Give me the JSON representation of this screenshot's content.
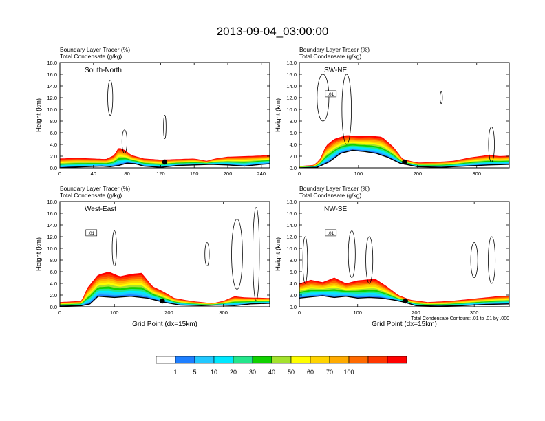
{
  "title": "2013-09-04_03:00:00",
  "chart_data": [
    {
      "type": "area",
      "id": "sn",
      "inset_label": "South-North",
      "subtitle_lines": [
        "Boundary Layer Tracer   (%)",
        "Total Condensate   (g/kg)"
      ],
      "ylabel": "Height (km)",
      "xlabel": "",
      "xlim": [
        0,
        250
      ],
      "ylim": [
        0,
        18
      ],
      "xticks": [
        0,
        40,
        80,
        120,
        160,
        200,
        240
      ],
      "yticks": [
        "0.0",
        "2.0",
        "4.0",
        "6.0",
        "8.0",
        "10.0",
        "12.0",
        "14.0",
        "16.0",
        "18.0"
      ],
      "terrain_km": [
        [
          0,
          0.0
        ],
        [
          10,
          0.1
        ],
        [
          30,
          0.2
        ],
        [
          50,
          0.3
        ],
        [
          60,
          0.2
        ],
        [
          70,
          0.4
        ],
        [
          80,
          0.8
        ],
        [
          90,
          0.7
        ],
        [
          100,
          0.3
        ],
        [
          120,
          0.1
        ],
        [
          140,
          0.4
        ],
        [
          160,
          0.5
        ],
        [
          180,
          0.6
        ],
        [
          200,
          0.5
        ],
        [
          220,
          0.3
        ],
        [
          240,
          0.6
        ],
        [
          250,
          0.7
        ]
      ],
      "tracer_top_km": [
        [
          0,
          1.6
        ],
        [
          20,
          1.7
        ],
        [
          40,
          1.6
        ],
        [
          55,
          1.5
        ],
        [
          65,
          2.2
        ],
        [
          70,
          3.5
        ],
        [
          78,
          3.0
        ],
        [
          85,
          2.2
        ],
        [
          100,
          1.6
        ],
        [
          120,
          1.4
        ],
        [
          140,
          1.5
        ],
        [
          160,
          1.6
        ],
        [
          175,
          1.2
        ],
        [
          185,
          1.6
        ],
        [
          200,
          1.9
        ],
        [
          220,
          2.0
        ],
        [
          240,
          2.1
        ],
        [
          250,
          2.2
        ]
      ],
      "contour_label": "",
      "marker": [
        125,
        1.0
      ]
    },
    {
      "type": "area",
      "id": "swne",
      "inset_label": "SW-NE",
      "subtitle_lines": [
        "Boundary Layer Tracer   (%)",
        "Total Condensate   (g/kg)"
      ],
      "ylabel": "Height (km)",
      "xlabel": "",
      "xlim": [
        0,
        355
      ],
      "ylim": [
        0,
        18
      ],
      "xticks": [
        0,
        100,
        200,
        300
      ],
      "yticks": [
        "0.0",
        "2.0",
        "4.0",
        "6.0",
        "8.0",
        "10.0",
        "12.0",
        "14.0",
        "16.0",
        "18.0"
      ],
      "terrain_km": [
        [
          0,
          0.0
        ],
        [
          30,
          0.1
        ],
        [
          50,
          1.0
        ],
        [
          70,
          2.5
        ],
        [
          90,
          3.0
        ],
        [
          110,
          2.8
        ],
        [
          130,
          2.5
        ],
        [
          150,
          1.8
        ],
        [
          170,
          0.8
        ],
        [
          200,
          0.2
        ],
        [
          240,
          0.1
        ],
        [
          280,
          0.3
        ],
        [
          320,
          0.5
        ],
        [
          355,
          0.6
        ]
      ],
      "tracer_top_km": [
        [
          0,
          0.3
        ],
        [
          25,
          0.5
        ],
        [
          35,
          1.5
        ],
        [
          45,
          3.8
        ],
        [
          60,
          5.0
        ],
        [
          80,
          5.6
        ],
        [
          100,
          5.4
        ],
        [
          120,
          5.5
        ],
        [
          140,
          5.3
        ],
        [
          160,
          3.5
        ],
        [
          175,
          1.5
        ],
        [
          200,
          0.9
        ],
        [
          230,
          1.0
        ],
        [
          260,
          1.2
        ],
        [
          290,
          1.8
        ],
        [
          320,
          2.2
        ],
        [
          340,
          2.0
        ],
        [
          355,
          2.1
        ]
      ],
      "contour_label": ".01",
      "marker": [
        178,
        1.0
      ]
    },
    {
      "type": "area",
      "id": "we",
      "inset_label": "West-East",
      "subtitle_lines": [
        "Boundary Layer Tracer   (%)",
        "Total Condensate   (g/kg)"
      ],
      "ylabel": "Height (km)",
      "xlabel": "Grid Point (dx=15km)",
      "xlim": [
        0,
        385
      ],
      "ylim": [
        0,
        18
      ],
      "xticks": [
        0,
        100,
        200,
        300
      ],
      "yticks": [
        "0.0",
        "2.0",
        "4.0",
        "6.0",
        "8.0",
        "10.0",
        "12.0",
        "14.0",
        "16.0",
        "18.0"
      ],
      "terrain_km": [
        [
          0,
          0.1
        ],
        [
          40,
          0.2
        ],
        [
          55,
          0.5
        ],
        [
          70,
          1.8
        ],
        [
          100,
          1.6
        ],
        [
          130,
          1.8
        ],
        [
          160,
          1.5
        ],
        [
          190,
          0.8
        ],
        [
          220,
          0.3
        ],
        [
          260,
          0.2
        ],
        [
          290,
          0.3
        ],
        [
          320,
          0.2
        ],
        [
          350,
          0.5
        ],
        [
          385,
          0.6
        ]
      ],
      "tracer_top_km": [
        [
          0,
          0.8
        ],
        [
          40,
          1.0
        ],
        [
          50,
          3.2
        ],
        [
          70,
          5.5
        ],
        [
          90,
          6.0
        ],
        [
          110,
          5.2
        ],
        [
          130,
          5.6
        ],
        [
          150,
          5.8
        ],
        [
          170,
          3.5
        ],
        [
          190,
          2.6
        ],
        [
          210,
          1.5
        ],
        [
          240,
          1.0
        ],
        [
          280,
          0.6
        ],
        [
          300,
          1.0
        ],
        [
          320,
          1.8
        ],
        [
          340,
          1.6
        ],
        [
          385,
          1.5
        ]
      ],
      "contour_label": ".01",
      "marker": [
        188,
        1.0
      ]
    },
    {
      "type": "area",
      "id": "nwse",
      "inset_label": "NW-SE",
      "subtitle_lines": [
        "Boundary Layer Tracer   (%)",
        "Total Condensate   (g/kg)"
      ],
      "ylabel": "Height (km)",
      "xlabel": "Grid Point (dx=15km)",
      "xlim": [
        0,
        360
      ],
      "ylim": [
        0,
        18
      ],
      "xticks": [
        0,
        100,
        200,
        300
      ],
      "yticks": [
        "0.0",
        "2.0",
        "4.0",
        "6.0",
        "8.0",
        "10.0",
        "12.0",
        "14.0",
        "16.0",
        "18.0"
      ],
      "terrain_km": [
        [
          0,
          1.5
        ],
        [
          20,
          1.7
        ],
        [
          40,
          1.9
        ],
        [
          60,
          1.6
        ],
        [
          80,
          1.8
        ],
        [
          100,
          1.5
        ],
        [
          120,
          1.6
        ],
        [
          140,
          1.5
        ],
        [
          160,
          1.2
        ],
        [
          180,
          0.8
        ],
        [
          200,
          0.2
        ],
        [
          240,
          0.1
        ],
        [
          280,
          0.2
        ],
        [
          320,
          0.4
        ],
        [
          360,
          0.5
        ]
      ],
      "tracer_top_km": [
        [
          0,
          4.0
        ],
        [
          20,
          4.6
        ],
        [
          40,
          4.2
        ],
        [
          60,
          5.0
        ],
        [
          80,
          4.0
        ],
        [
          100,
          4.5
        ],
        [
          130,
          4.8
        ],
        [
          150,
          3.5
        ],
        [
          170,
          2.0
        ],
        [
          190,
          1.2
        ],
        [
          220,
          0.8
        ],
        [
          260,
          1.0
        ],
        [
          300,
          1.4
        ],
        [
          340,
          1.8
        ],
        [
          360,
          1.9
        ]
      ],
      "contour_label": ".01",
      "marker": [
        182,
        1.0
      ],
      "footnote": "Total Condensate Contours: .01 to .01 by .000"
    }
  ],
  "colorbar": {
    "colors": [
      "#ffffff",
      "#1e7fff",
      "#22c8ff",
      "#00e8ff",
      "#25e68c",
      "#11d100",
      "#a4e22e",
      "#ffff00",
      "#ffd400",
      "#ffab00",
      "#ff6a00",
      "#ff3600",
      "#ff0000"
    ],
    "labels": [
      "1",
      "5",
      "10",
      "20",
      "30",
      "40",
      "50",
      "60",
      "70",
      "100"
    ]
  }
}
